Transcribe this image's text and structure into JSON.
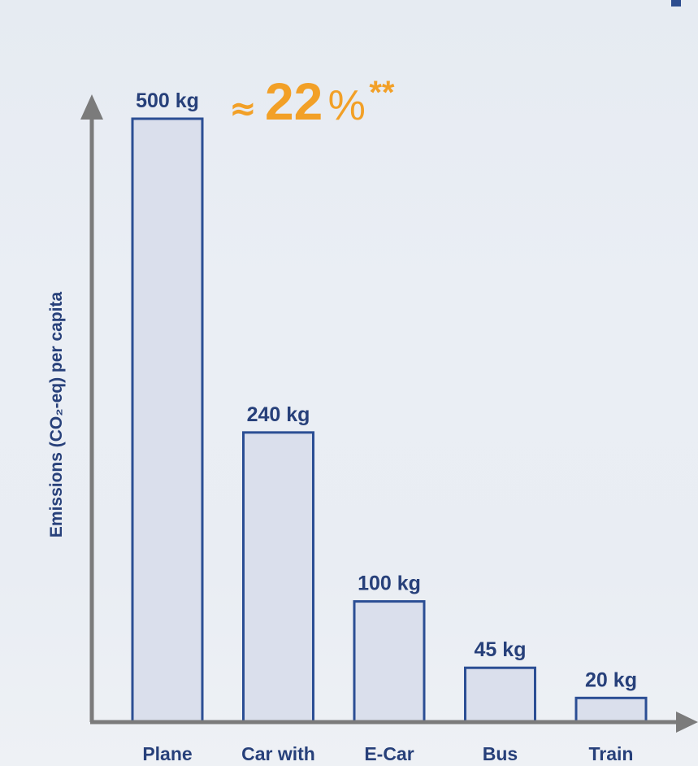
{
  "chart_data": {
    "type": "bar",
    "categories": [
      "Plane",
      "Car with",
      "E-Car",
      "Bus",
      "Train"
    ],
    "values": [
      500,
      240,
      100,
      45,
      20
    ],
    "value_labels": [
      "500 kg",
      "240 kg",
      "100 kg",
      "45 kg",
      "20 kg"
    ],
    "ylabel": "Emissions (CO₂-eq) per capita",
    "xlabel": "",
    "title": "",
    "ylim": [
      0,
      500
    ],
    "grid": false,
    "legend": "none"
  },
  "annotation": {
    "approx": "≈",
    "number": "22",
    "percent": "%",
    "stars": "**"
  },
  "colors": {
    "bar_fill": "#dadfec",
    "bar_stroke": "#2b4e94",
    "label_text": "#27407a",
    "axis": "#7b7b7b",
    "highlight": "#f2a027"
  }
}
